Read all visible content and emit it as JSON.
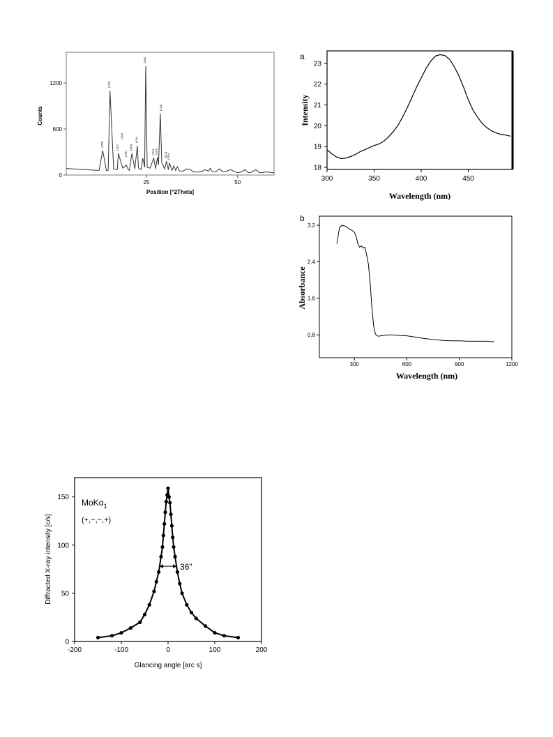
{
  "chart_data": [
    {
      "id": "xrd",
      "type": "line",
      "xlabel": "Position [°2Theta]",
      "ylabel": "Counts",
      "xlim": [
        3,
        60
      ],
      "ylim": [
        0,
        1600
      ],
      "xticks": [
        25,
        50
      ],
      "yticks": [
        0,
        600,
        1200
      ],
      "series": [
        {
          "x": [
            3,
            8,
            10,
            12,
            13,
            14,
            14.5,
            15,
            16,
            17,
            17.3,
            18.5,
            19.5,
            20,
            20.3,
            21,
            21.8,
            22.5,
            22.8,
            23.5,
            24,
            24.5,
            24.8,
            25.2,
            26,
            27,
            27.5,
            28,
            28.3,
            28.8,
            29.2,
            30,
            30.5,
            31,
            31.3,
            32,
            32.5,
            33,
            33.5,
            34,
            35,
            36,
            37,
            38,
            39,
            40,
            41,
            42,
            42.5,
            43,
            44,
            45,
            46,
            47,
            48,
            50,
            51,
            52,
            53,
            54,
            55,
            56,
            58,
            60
          ],
          "y": [
            85,
            70,
            65,
            60,
            320,
            60,
            60,
            1100,
            80,
            70,
            280,
            90,
            130,
            70,
            60,
            280,
            80,
            380,
            90,
            70,
            220,
            100,
            1420,
            100,
            90,
            220,
            80,
            230,
            130,
            800,
            160,
            80,
            180,
            70,
            160,
            60,
            120,
            60,
            110,
            55,
            50,
            80,
            70,
            40,
            40,
            40,
            70,
            50,
            90,
            45,
            40,
            80,
            40,
            50,
            70,
            30,
            40,
            70,
            30,
            40,
            70,
            30,
            40,
            30
          ]
        }
      ],
      "peak_labels": [
        {
          "x": 13,
          "y": 320,
          "text": "(400)"
        },
        {
          "x": 15,
          "y": 1100,
          "text": "(310)"
        },
        {
          "x": 17.3,
          "y": 280,
          "text": "(111)"
        },
        {
          "x": 18.5,
          "y": 430,
          "text": "(311)"
        },
        {
          "x": 19.5,
          "y": 200,
          "text": "(411)"
        },
        {
          "x": 21,
          "y": 280,
          "text": "(410)"
        },
        {
          "x": 22.5,
          "y": 380,
          "text": "(411)"
        },
        {
          "x": 24.8,
          "y": 1420,
          "text": "(103)"
        },
        {
          "x": 27,
          "y": 220,
          "text": "(211)"
        },
        {
          "x": 28,
          "y": 230,
          "text": "(302)"
        },
        {
          "x": 29.2,
          "y": 800,
          "text": "(710)"
        },
        {
          "x": 30.5,
          "y": 180,
          "text": "(312)"
        },
        {
          "x": 31.3,
          "y": 160,
          "text": "(220)"
        }
      ]
    },
    {
      "id": "intensity",
      "type": "line",
      "panel_label": "a",
      "xlabel": "Wavelength (nm)",
      "ylabel": "Intensity",
      "xlim": [
        300,
        497
      ],
      "ylim": [
        17.9,
        23.6
      ],
      "xticks": [
        300,
        350,
        400,
        450
      ],
      "yticks": [
        18,
        19,
        20,
        21,
        22,
        23
      ],
      "series": [
        {
          "x": [
            300,
            305,
            310,
            315,
            320,
            325,
            330,
            335,
            340,
            345,
            350,
            355,
            360,
            365,
            370,
            375,
            380,
            385,
            390,
            395,
            400,
            405,
            410,
            415,
            420,
            425,
            430,
            435,
            440,
            445,
            450,
            455,
            460,
            465,
            470,
            475,
            480,
            485,
            490,
            495
          ],
          "y": [
            18.85,
            18.65,
            18.5,
            18.42,
            18.45,
            18.52,
            18.62,
            18.75,
            18.85,
            18.95,
            19.05,
            19.12,
            19.25,
            19.45,
            19.7,
            20.0,
            20.4,
            20.85,
            21.35,
            21.85,
            22.3,
            22.75,
            23.1,
            23.35,
            23.42,
            23.38,
            23.2,
            22.85,
            22.4,
            21.85,
            21.25,
            20.75,
            20.4,
            20.1,
            19.9,
            19.75,
            19.65,
            19.58,
            19.55,
            19.5
          ]
        }
      ]
    },
    {
      "id": "absorbance",
      "type": "line",
      "panel_label": "b",
      "xlabel": "Wavelength (nm)",
      "ylabel": "Absorbance",
      "xlim": [
        100,
        1200
      ],
      "ylim": [
        0.3,
        3.4
      ],
      "xticks": [
        300,
        600,
        900,
        1200
      ],
      "yticks": [
        0.8,
        1.6,
        2.4,
        3.2
      ],
      "series": [
        {
          "x": [
            200,
            215,
            230,
            250,
            270,
            290,
            300,
            310,
            320,
            330,
            340,
            350,
            360,
            370,
            380,
            390,
            400,
            410,
            420,
            430,
            440,
            450,
            470,
            500,
            550,
            600,
            650,
            700,
            750,
            800,
            850,
            900,
            950,
            1000,
            1050,
            1100
          ],
          "y": [
            2.8,
            3.15,
            3.2,
            3.18,
            3.12,
            3.08,
            3.05,
            2.95,
            2.8,
            2.72,
            2.75,
            2.7,
            2.72,
            2.55,
            2.35,
            1.95,
            1.4,
            1.0,
            0.82,
            0.78,
            0.77,
            0.78,
            0.79,
            0.8,
            0.79,
            0.78,
            0.75,
            0.72,
            0.7,
            0.68,
            0.67,
            0.67,
            0.66,
            0.66,
            0.66,
            0.65
          ]
        }
      ]
    },
    {
      "id": "rocking",
      "type": "scatter",
      "xlabel": "Glancing angle [arc s]",
      "ylabel": "Diffracted X-ray intensity [c/s]",
      "xlim": [
        -200,
        200
      ],
      "ylim": [
        0,
        170
      ],
      "xticks": [
        -200,
        -100,
        0,
        100,
        200
      ],
      "yticks": [
        0,
        50,
        100,
        150
      ],
      "annotation_main": "MoKα",
      "annotation_sub": "1",
      "annotation_sign": "(+,−,−,+)",
      "fwhm_label": "36\"",
      "fwhm_y": 78,
      "fwhm_half": 18,
      "series": [
        {
          "x": [
            -150,
            -120,
            -100,
            -80,
            -60,
            -50,
            -40,
            -30,
            -25,
            -20,
            -15,
            -12,
            -10,
            -8,
            -6,
            -4,
            -2,
            0,
            2,
            4,
            6,
            8,
            10,
            12,
            15,
            20,
            25,
            30,
            40,
            50,
            60,
            80,
            100,
            120,
            150
          ],
          "y": [
            4,
            6,
            9,
            14,
            20,
            28,
            38,
            52,
            62,
            72,
            88,
            98,
            110,
            122,
            134,
            145,
            152,
            159,
            150,
            144,
            132,
            120,
            108,
            98,
            88,
            72,
            60,
            50,
            38,
            30,
            24,
            16,
            9,
            6,
            4
          ]
        }
      ]
    }
  ]
}
